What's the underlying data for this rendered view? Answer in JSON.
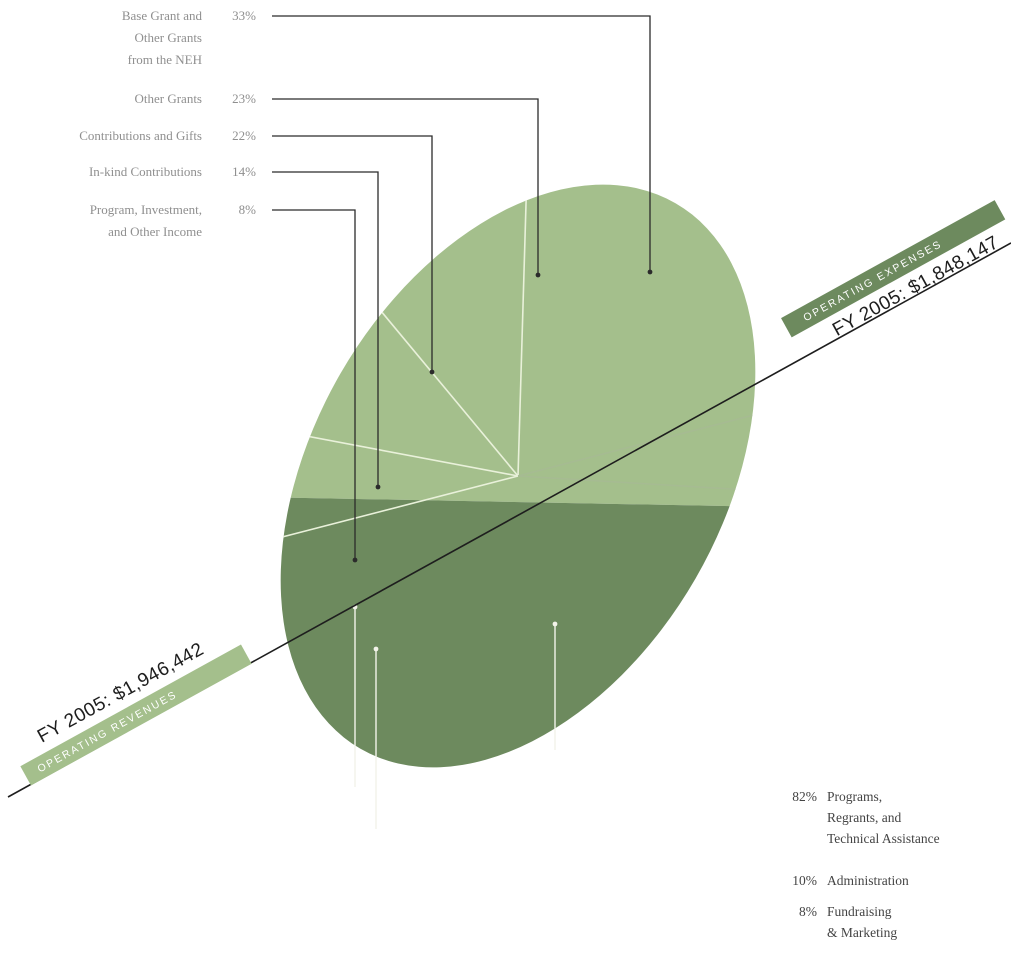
{
  "chart_data": {
    "type": "pie",
    "revenues": {
      "title": "FY 2005: $1,946,442",
      "banner": "OPERATING REVENUES",
      "color": "#a4bf8c",
      "divider_color": "#e9f1da",
      "slices": [
        {
          "label_lines": [
            "Base Grant and",
            "Other Grants",
            "from the NEH"
          ],
          "pct_text": "33%",
          "value": 33
        },
        {
          "label_lines": [
            "Other Grants"
          ],
          "pct_text": "23%",
          "value": 23
        },
        {
          "label_lines": [
            "Contributions and Gifts"
          ],
          "pct_text": "22%",
          "value": 22
        },
        {
          "label_lines": [
            "In-kind Contributions"
          ],
          "pct_text": "14%",
          "value": 14
        },
        {
          "label_lines": [
            "Program, Investment,",
            "and Other Income"
          ],
          "pct_text": "8%",
          "value": 8
        }
      ]
    },
    "expenses": {
      "title": "FY 2005: $1,848,147",
      "banner": "OPERATING EXPENSES",
      "color": "#6d8a5e",
      "divider_color": "#a6bb92",
      "slices": [
        {
          "label_lines": [
            "Programs,",
            "Regrants, and",
            "Technical Assistance"
          ],
          "pct_text": "82%",
          "value": 82
        },
        {
          "label_lines": [
            "Administration"
          ],
          "pct_text": "10%",
          "value": 10
        },
        {
          "label_lines": [
            "Fundraising",
            "& Marketing"
          ],
          "pct_text": "8%",
          "value": 8
        }
      ]
    },
    "colors": {
      "leader_line_light": "#2b2b2b",
      "leader_line_dark": "#f3f3ea",
      "banner_revenues": "#a4bf8c",
      "banner_expenses": "#6d8a5e"
    }
  }
}
